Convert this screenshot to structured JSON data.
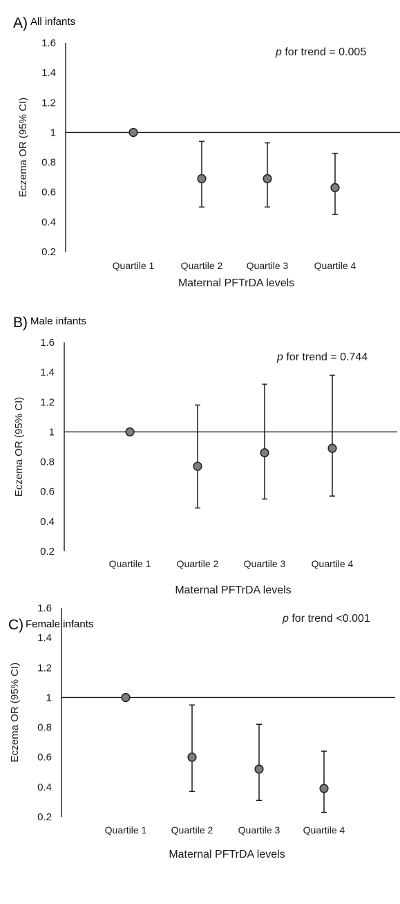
{
  "chart_data": [
    {
      "type": "scatter",
      "panel_letter": "A)",
      "title": "All infants",
      "xlabel": "Maternal PFTrDA levels",
      "ylabel": "Eczema OR (95% CI)",
      "ylim": [
        0.2,
        1.6
      ],
      "yticks": [
        "1.6",
        "1.4",
        "1.2",
        "1",
        "0.8",
        "0.6",
        "0.4",
        "0.2"
      ],
      "categories": [
        "Quartile 1",
        "Quartile 2",
        "Quartile 3",
        "Quartile 4"
      ],
      "values": [
        1.0,
        0.69,
        0.69,
        0.63
      ],
      "ci_lower": [
        1.0,
        0.5,
        0.5,
        0.45
      ],
      "ci_upper": [
        1.0,
        0.94,
        0.93,
        0.86
      ],
      "reference_line": 1,
      "annotation": {
        "p": "p",
        "text": " for trend = 0.005"
      }
    },
    {
      "type": "scatter",
      "panel_letter": "B)",
      "title": "Male infants",
      "xlabel": "Maternal PFTrDA levels",
      "ylabel": "Eczema OR (95% CI)",
      "ylim": [
        0.2,
        1.6
      ],
      "yticks": [
        "1.6",
        "1.4",
        "1.2",
        "1",
        "0.8",
        "0.6",
        "0.4",
        "0.2"
      ],
      "categories": [
        "Quartile 1",
        "Quartile 2",
        "Quartile 3",
        "Quartile 4"
      ],
      "values": [
        1.0,
        0.77,
        0.86,
        0.89
      ],
      "ci_lower": [
        1.0,
        0.49,
        0.55,
        0.57
      ],
      "ci_upper": [
        1.0,
        1.18,
        1.32,
        1.38
      ],
      "reference_line": 1,
      "annotation": {
        "p": "p",
        "text": " for trend = 0.744"
      }
    },
    {
      "type": "scatter",
      "panel_letter": "C)",
      "title": "Female infants",
      "xlabel": "Maternal PFTrDA levels",
      "ylabel": "Eczema OR (95% CI)",
      "ylim": [
        0.2,
        1.6
      ],
      "yticks": [
        "1.6",
        "1.4",
        "1.2",
        "1",
        "0.8",
        "0.6",
        "0.4",
        "0.2"
      ],
      "categories": [
        "Quartile 1",
        "Quartile 2",
        "Quartile 3",
        "Quartile 4"
      ],
      "values": [
        1.0,
        0.6,
        0.52,
        0.39
      ],
      "ci_lower": [
        1.0,
        0.37,
        0.31,
        0.23
      ],
      "ci_upper": [
        1.0,
        0.95,
        0.82,
        0.64
      ],
      "reference_line": 1,
      "annotation": {
        "p": "p",
        "text": " for trend <0.001"
      }
    }
  ]
}
